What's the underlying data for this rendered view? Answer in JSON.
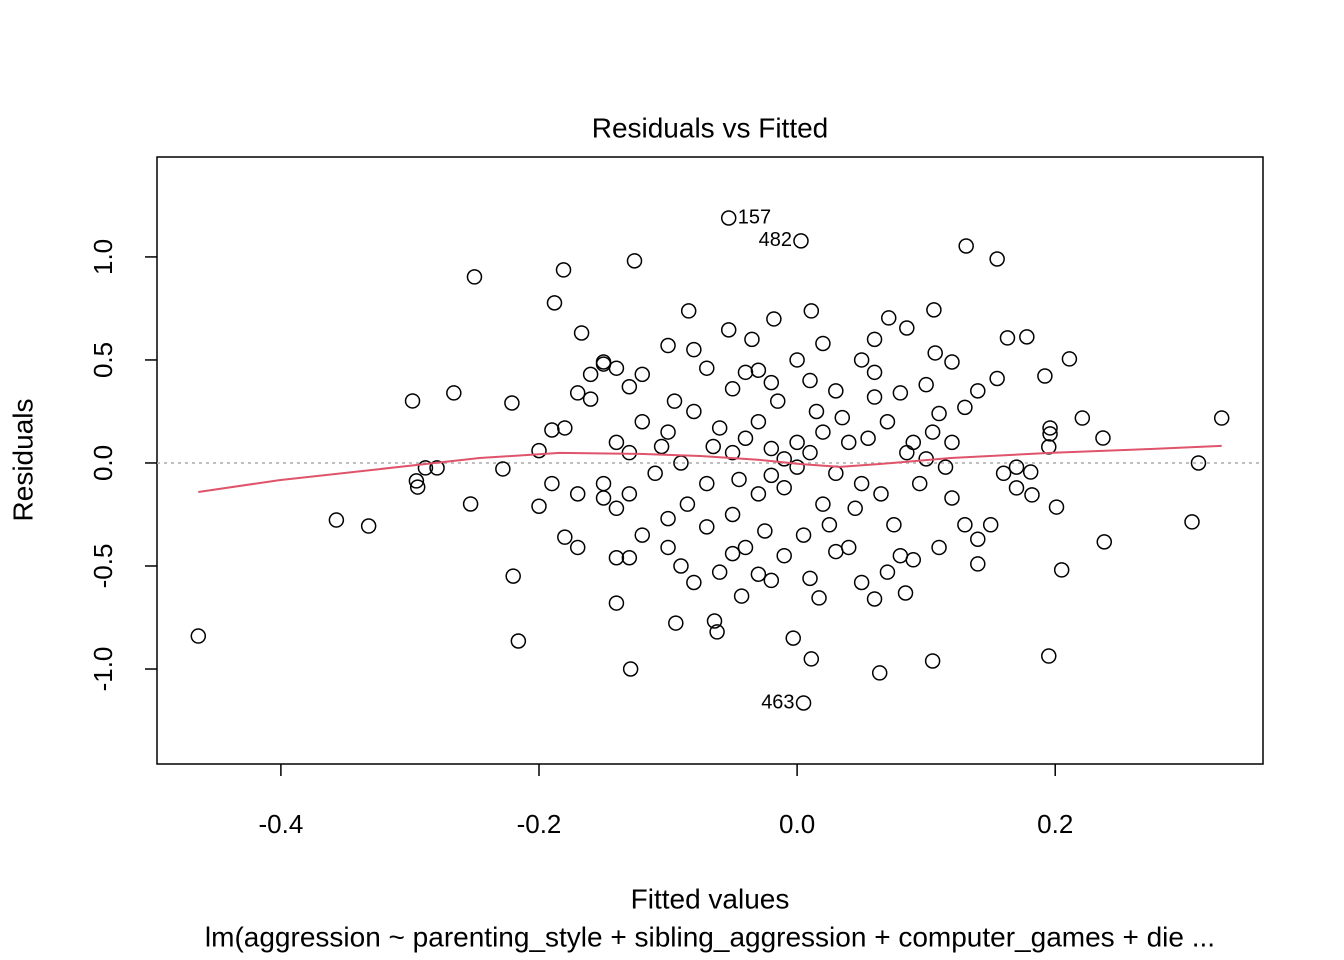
{
  "chart_data": {
    "type": "scatter",
    "title": "Residuals vs Fitted",
    "x_label": "Fitted values",
    "y_label": "Residuals",
    "subtitle": "lm(aggression ~ parenting_style + sibling_aggression + computer_games + die ...",
    "xlim": [
      -0.496,
      0.361
    ],
    "ylim": [
      -1.461,
      1.485
    ],
    "xticks": [
      -0.4,
      -0.2,
      {
        "value": 0,
        "label": "0.0"
      },
      0.2
    ],
    "yticks": [
      {
        "value": -1,
        "label": "-1.0"
      },
      -0.5,
      {
        "value": 0,
        "label": "0.0"
      },
      0.5,
      {
        "value": 1,
        "label": "1.0"
      }
    ],
    "reference_line": 0,
    "series": [
      {
        "name": "Residuals",
        "color": "#000000",
        "x": [
          -0.464,
          -0.25,
          -0.181,
          -0.126,
          -0.053,
          0.003,
          0.005,
          0.131,
          0.155,
          -0.298,
          -0.266,
          -0.357,
          -0.332,
          -0.295,
          -0.294,
          -0.288,
          -0.279,
          -0.253,
          -0.228,
          -0.221,
          -0.22,
          -0.216,
          -0.188,
          -0.167,
          0.329,
          0.311,
          0.306,
          0.238,
          0.205,
          0.201,
          0.195,
          0.105,
          0.064,
          0.011,
          -0.129,
          -0.094,
          -0.064,
          -0.062,
          -0.003,
          -0.14,
          -0.043,
          0.084,
          0.017,
          0.211,
          0.221,
          0.237,
          0.178,
          0.163,
          0.106,
          0.011,
          -0.084,
          -0.053,
          -0.018,
          0.107,
          0.085,
          0.071,
          0.192,
          0.196,
          0.196,
          0.195,
          0.181,
          0.182,
          0.17,
          -0.15,
          -0.15,
          -0.14,
          -0.13,
          -0.12,
          -0.1,
          -0.08,
          -0.07,
          -0.05,
          -0.04,
          -0.03,
          -0.02,
          0.0,
          0.03,
          0.05,
          0.06,
          0.08,
          0.1,
          0.12,
          0.14,
          0.155,
          -0.17,
          -0.16,
          -0.16,
          -0.18,
          -0.19,
          -0.2,
          -0.19,
          -0.2,
          -0.17,
          -0.18,
          -0.17,
          -0.15,
          -0.15,
          -0.14,
          -0.14,
          -0.13,
          -0.12,
          -0.1,
          -0.1,
          -0.09,
          -0.08,
          -0.07,
          -0.06,
          -0.05,
          -0.04,
          -0.03,
          -0.02,
          -0.01,
          0.01,
          0.03,
          0.04,
          0.05,
          0.06,
          0.07,
          0.08,
          0.09,
          0.11,
          0.12,
          0.13,
          0.14,
          0.14,
          0.15,
          0.16,
          0.17,
          0.13,
          0.12,
          0.11,
          0.1,
          0.09,
          0.07,
          0.06,
          0.05,
          0.04,
          0.03,
          0.02,
          0.02,
          0.01,
          0.0,
          0.0,
          -0.01,
          -0.01,
          -0.02,
          -0.02,
          -0.03,
          -0.03,
          -0.04,
          -0.05,
          -0.05,
          -0.06,
          -0.07,
          -0.08,
          -0.09,
          -0.1,
          -0.11,
          -0.12,
          -0.13,
          -0.13,
          -0.14,
          0.015,
          0.025,
          -0.015,
          0.035,
          0.045,
          0.005,
          -0.025,
          0.055,
          -0.045,
          0.065,
          0.075,
          0.085,
          -0.065,
          0.095,
          -0.085,
          -0.095,
          0.105,
          -0.105,
          0.115,
          0.01,
          0.02,
          -0.035,
          0.06
        ],
        "values": [
          -0.84,
          0.903,
          0.937,
          0.981,
          1.189,
          1.078,
          -1.165,
          1.053,
          0.99,
          0.301,
          0.34,
          -0.277,
          -0.306,
          -0.087,
          -0.117,
          -0.024,
          -0.024,
          -0.199,
          -0.029,
          0.291,
          -0.549,
          -0.864,
          0.777,
          0.631,
          0.218,
          0.0,
          -0.286,
          -0.383,
          -0.519,
          -0.214,
          -0.937,
          -0.961,
          -1.019,
          -0.951,
          -1.0,
          -0.777,
          -0.767,
          -0.82,
          -0.85,
          -0.68,
          -0.646,
          -0.631,
          -0.655,
          0.505,
          0.218,
          0.121,
          0.612,
          0.607,
          0.743,
          0.738,
          0.738,
          0.646,
          0.699,
          0.534,
          0.655,
          0.704,
          0.422,
          0.17,
          0.141,
          0.078,
          -0.044,
          -0.155,
          -0.121,
          0.49,
          0.48,
          0.46,
          0.37,
          0.43,
          0.57,
          0.55,
          0.46,
          0.36,
          0.44,
          0.45,
          0.39,
          0.5,
          0.35,
          0.5,
          0.44,
          0.34,
          0.38,
          0.49,
          0.35,
          0.41,
          0.34,
          0.31,
          0.43,
          0.17,
          0.16,
          0.06,
          -0.1,
          -0.21,
          -0.15,
          -0.36,
          -0.41,
          -0.1,
          -0.17,
          -0.22,
          -0.46,
          -0.46,
          -0.35,
          -0.41,
          -0.27,
          -0.5,
          -0.58,
          -0.31,
          -0.53,
          -0.44,
          -0.41,
          -0.54,
          -0.57,
          -0.45,
          -0.56,
          -0.43,
          -0.41,
          -0.58,
          -0.66,
          -0.53,
          -0.45,
          -0.47,
          -0.41,
          -0.17,
          -0.3,
          -0.37,
          -0.49,
          -0.3,
          -0.05,
          -0.02,
          0.27,
          0.1,
          0.24,
          0.02,
          0.1,
          0.2,
          0.32,
          -0.1,
          0.1,
          -0.05,
          0.15,
          -0.2,
          0.05,
          -0.02,
          0.1,
          0.02,
          -0.12,
          0.07,
          -0.06,
          0.2,
          -0.15,
          0.12,
          -0.25,
          0.05,
          0.17,
          -0.1,
          0.25,
          0.0,
          0.15,
          -0.05,
          0.2,
          -0.15,
          0.05,
          0.1,
          0.25,
          -0.3,
          0.3,
          0.22,
          -0.22,
          -0.35,
          -0.33,
          0.12,
          -0.08,
          -0.15,
          -0.3,
          0.05,
          0.08,
          -0.1,
          -0.2,
          0.3,
          0.15,
          0.08,
          -0.02,
          0.4,
          0.58,
          0.6,
          0.6
        ]
      }
    ],
    "smooth": {
      "color": "#df536b",
      "x": [
        -0.464,
        -0.401,
        -0.308,
        -0.246,
        -0.184,
        -0.122,
        -0.075,
        -0.029,
        0.002,
        0.033,
        0.064,
        0.119,
        0.196,
        0.274,
        0.329
      ],
      "values": [
        -0.141,
        -0.083,
        -0.019,
        0.024,
        0.049,
        0.044,
        0.034,
        0.015,
        -0.005,
        -0.019,
        -0.005,
        0.024,
        0.049,
        0.068,
        0.083
      ]
    },
    "annotations": [
      {
        "text": "157",
        "x": -0.053,
        "y": 1.189,
        "side": "right"
      },
      {
        "text": "482",
        "x": 0.003,
        "y": 1.078,
        "side": "left"
      },
      {
        "text": "463",
        "x": 0.005,
        "y": -1.165,
        "side": "left"
      }
    ]
  }
}
